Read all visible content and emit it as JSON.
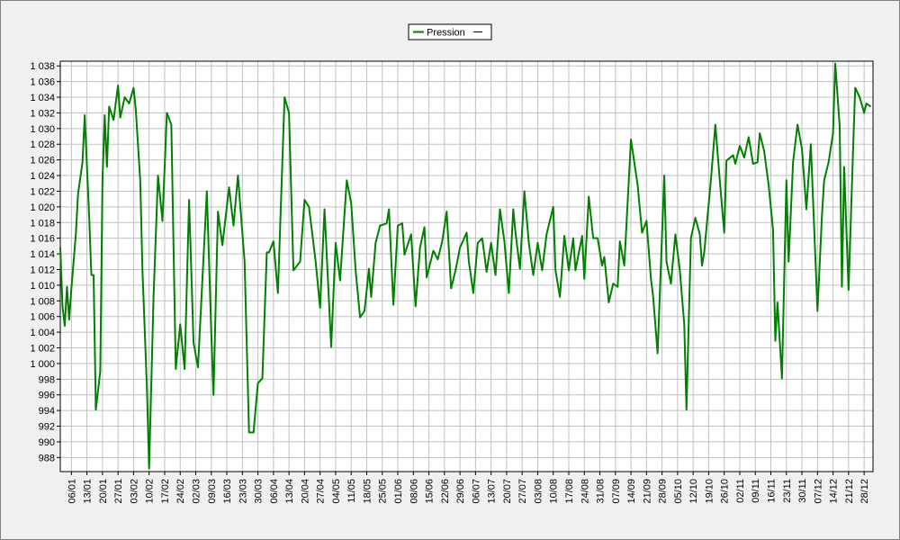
{
  "chart_data": {
    "type": "line",
    "x": [
      1,
      2,
      3,
      4,
      5,
      6,
      8,
      9,
      11,
      12,
      14,
      15,
      16,
      17,
      19,
      20,
      21,
      22,
      23,
      25,
      27,
      28,
      30,
      32,
      34,
      35,
      37,
      38,
      40,
      41,
      43,
      45,
      47,
      49,
      51,
      53,
      55,
      57,
      59,
      61,
      63,
      67,
      69,
      70,
      72,
      74,
      77,
      79,
      81,
      84,
      86,
      88,
      90,
      92,
      94,
      95,
      97,
      99,
      102,
      104,
      106,
      109,
      111,
      113,
      116,
      118,
      120,
      123,
      125,
      127,
      130,
      132,
      134,
      136,
      138,
      140,
      141,
      143,
      145,
      148,
      149,
      151,
      153,
      155,
      156,
      159,
      161,
      163,
      165,
      166,
      169,
      171,
      173,
      175,
      177,
      179,
      181,
      184,
      185,
      187,
      189,
      191,
      193,
      195,
      197,
      199,
      201,
      203,
      205,
      206,
      208,
      210,
      212,
      214,
      216,
      218,
      220,
      223,
      224,
      226,
      228,
      230,
      232,
      233,
      236,
      237,
      239,
      241,
      243,
      245,
      246,
      248,
      250,
      252,
      253,
      255,
      258,
      261,
      263,
      265,
      267,
      268,
      270,
      273,
      274,
      276,
      278,
      280,
      282,
      283,
      285,
      287,
      289,
      290,
      291,
      294,
      296,
      298,
      300,
      301,
      304,
      305,
      307,
      309,
      311,
      313,
      315,
      316,
      318,
      320,
      322,
      323,
      324,
      326,
      328,
      329,
      331,
      333,
      335,
      337,
      339,
      342,
      344,
      345,
      347,
      349,
      350,
      352,
      353,
      354,
      356,
      358,
      359,
      361,
      363,
      364,
      366
    ],
    "series": [
      {
        "name": "Pression",
        "color": "#008000",
        "values": [
          1014.8,
          1007.3,
          1004.8,
          1009.8,
          1005.6,
          1009.6,
          1016.5,
          1021.7,
          1025.7,
          1031.7,
          1018.8,
          1011.3,
          1011.3,
          994.1,
          999,
          1023.4,
          1031.7,
          1025.1,
          1032.8,
          1031.1,
          1035.5,
          1031.4,
          1034,
          1033.2,
          1035.2,
          1032.4,
          1023.4,
          1011.9,
          997,
          986.6,
          1008.5,
          1024,
          1018.2,
          1032,
          1030.5,
          999.3,
          1005,
          999.3,
          1020.9,
          1002.7,
          999.5,
          1022,
          1003.9,
          996,
          1019.4,
          1015.1,
          1022.5,
          1017.6,
          1024,
          1013,
          991.2,
          991.2,
          997.5,
          998.1,
          1014.2,
          1014.2,
          1015.6,
          1009,
          1034,
          1032,
          1011.9,
          1013,
          1020.9,
          1020,
          1013,
          1007.1,
          1019.7,
          1002.1,
          1015.4,
          1010.6,
          1023.4,
          1020.5,
          1011.9,
          1005.9,
          1006.7,
          1012.1,
          1008.5,
          1015.4,
          1017.6,
          1017.9,
          1019.7,
          1007.5,
          1017.6,
          1017.9,
          1013.9,
          1016.5,
          1007.3,
          1014.8,
          1017.4,
          1011,
          1014.4,
          1013.3,
          1015.6,
          1019.4,
          1009.6,
          1011.9,
          1014.8,
          1016.7,
          1013,
          1009,
          1015.4,
          1016,
          1011.7,
          1015.4,
          1011.3,
          1019.7,
          1015.6,
          1009,
          1019.7,
          1016.7,
          1012.1,
          1022,
          1015.4,
          1011.3,
          1015.4,
          1011.9,
          1016.5,
          1020,
          1011.9,
          1008.5,
          1016.3,
          1011.9,
          1016,
          1011.9,
          1016.3,
          1010.8,
          1021.3,
          1016,
          1016,
          1012.5,
          1013.6,
          1007.8,
          1010.2,
          1009.8,
          1015.6,
          1012.5,
          1028.6,
          1022.8,
          1016.7,
          1018.2,
          1010.8,
          1008.5,
          1001.3,
          1024,
          1013,
          1010.2,
          1016.5,
          1011.9,
          1005,
          994.1,
          1016,
          1018.6,
          1016.5,
          1012.5,
          1014.2,
          1023.4,
          1030.5,
          1023.4,
          1016.7,
          1025.9,
          1026.6,
          1025.5,
          1027.8,
          1026.3,
          1028.9,
          1025.5,
          1025.7,
          1029.4,
          1027.1,
          1022.8,
          1017,
          1002.9,
          1007.8,
          998.1,
          1023.4,
          1013,
          1025.7,
          1030.5,
          1027.4,
          1019.7,
          1028,
          1006.7,
          1018.8,
          1023.4,
          1025.7,
          1029.4,
          1038.3,
          1030.3,
          1009.8,
          1025.1,
          1009.4,
          1027.1,
          1035.2,
          1034,
          1032,
          1033.2,
          1032.8
        ]
      }
    ],
    "xlim": [
      1,
      367
    ],
    "xticks": [
      {
        "value": 6,
        "label": "06/01"
      },
      {
        "value": 13,
        "label": "13/01"
      },
      {
        "value": 20,
        "label": "20/01"
      },
      {
        "value": 27,
        "label": "27/01"
      },
      {
        "value": 34,
        "label": "03/02"
      },
      {
        "value": 41,
        "label": "10/02"
      },
      {
        "value": 48,
        "label": "17/02"
      },
      {
        "value": 55,
        "label": "24/02"
      },
      {
        "value": 62,
        "label": "02/03"
      },
      {
        "value": 69,
        "label": "09/03"
      },
      {
        "value": 76,
        "label": "16/03"
      },
      {
        "value": 83,
        "label": "23/03"
      },
      {
        "value": 90,
        "label": "30/03"
      },
      {
        "value": 97,
        "label": "06/04"
      },
      {
        "value": 104,
        "label": "13/04"
      },
      {
        "value": 111,
        "label": "20/04"
      },
      {
        "value": 118,
        "label": "27/04"
      },
      {
        "value": 125,
        "label": "04/05"
      },
      {
        "value": 132,
        "label": "11/05"
      },
      {
        "value": 139,
        "label": "18/05"
      },
      {
        "value": 146,
        "label": "25/05"
      },
      {
        "value": 153,
        "label": "01/06"
      },
      {
        "value": 160,
        "label": "08/06"
      },
      {
        "value": 167,
        "label": "15/06"
      },
      {
        "value": 174,
        "label": "22/06"
      },
      {
        "value": 181,
        "label": "29/06"
      },
      {
        "value": 188,
        "label": "06/07"
      },
      {
        "value": 195,
        "label": "13/07"
      },
      {
        "value": 202,
        "label": "20/07"
      },
      {
        "value": 209,
        "label": "27/07"
      },
      {
        "value": 216,
        "label": "03/08"
      },
      {
        "value": 223,
        "label": "10/08"
      },
      {
        "value": 230,
        "label": "17/08"
      },
      {
        "value": 237,
        "label": "24/08"
      },
      {
        "value": 244,
        "label": "31/08"
      },
      {
        "value": 251,
        "label": "07/09"
      },
      {
        "value": 258,
        "label": "14/09"
      },
      {
        "value": 265,
        "label": "21/09"
      },
      {
        "value": 272,
        "label": "28/09"
      },
      {
        "value": 279,
        "label": "05/10"
      },
      {
        "value": 286,
        "label": "12/10"
      },
      {
        "value": 293,
        "label": "19/10"
      },
      {
        "value": 300,
        "label": "26/10"
      },
      {
        "value": 307,
        "label": "02/11"
      },
      {
        "value": 314,
        "label": "09/11"
      },
      {
        "value": 321,
        "label": "16/11"
      },
      {
        "value": 328,
        "label": "23/11"
      },
      {
        "value": 335,
        "label": "30/11"
      },
      {
        "value": 342,
        "label": "07/12"
      },
      {
        "value": 349,
        "label": "14/12"
      },
      {
        "value": 356,
        "label": "21/12"
      },
      {
        "value": 363,
        "label": "28/12"
      }
    ],
    "ylim": [
      986.2,
      1038.6
    ],
    "yticks": [
      988,
      990,
      992,
      994,
      996,
      998,
      {
        "value": 1000,
        "label": "1 000"
      },
      {
        "value": 1002,
        "label": "1 002"
      },
      {
        "value": 1004,
        "label": "1 004"
      },
      {
        "value": 1006,
        "label": "1 006"
      },
      {
        "value": 1008,
        "label": "1 008"
      },
      {
        "value": 1010,
        "label": "1 010"
      },
      {
        "value": 1012,
        "label": "1 012"
      },
      {
        "value": 1014,
        "label": "1 014"
      },
      {
        "value": 1016,
        "label": "1 016"
      },
      {
        "value": 1018,
        "label": "1 018"
      },
      {
        "value": 1020,
        "label": "1 020"
      },
      {
        "value": 1022,
        "label": "1 022"
      },
      {
        "value": 1024,
        "label": "1 024"
      },
      {
        "value": 1026,
        "label": "1 026"
      },
      {
        "value": 1028,
        "label": "1 028"
      },
      {
        "value": 1030,
        "label": "1 030"
      },
      {
        "value": 1032,
        "label": "1 032"
      },
      {
        "value": 1034,
        "label": "1 034"
      },
      {
        "value": 1036,
        "label": "1 036"
      },
      {
        "value": 1038,
        "label": "1 038"
      }
    ],
    "grid": true
  }
}
